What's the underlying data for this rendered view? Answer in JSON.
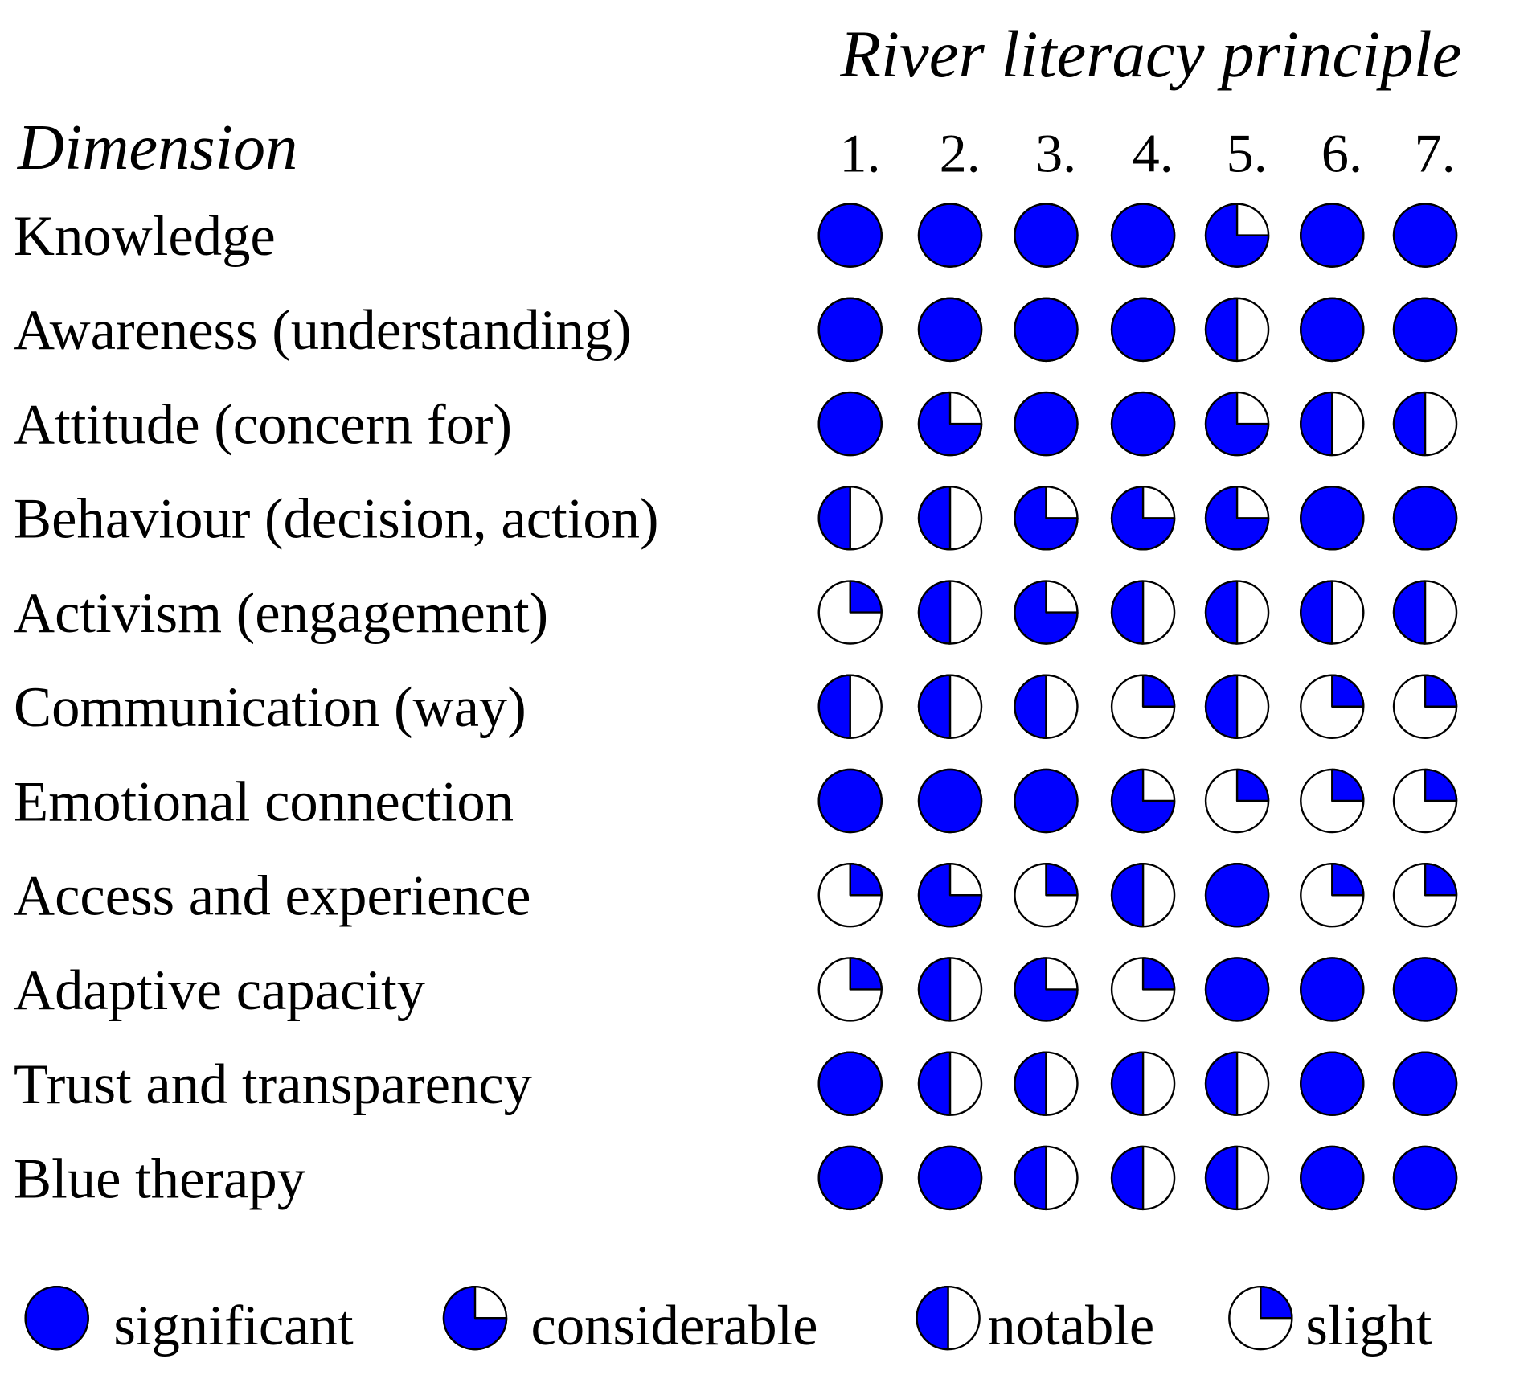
{
  "header": {
    "title": "River literacy principle",
    "dimension_label": "Dimension"
  },
  "columns": [
    "1.",
    "2.",
    "3.",
    "4.",
    "5.",
    "6.",
    "7."
  ],
  "color": "#0000ff",
  "rows": [
    {
      "label": "Knowledge",
      "values": [
        1,
        1,
        1,
        1,
        0.75,
        1,
        1
      ]
    },
    {
      "label": "Awareness (understanding)",
      "values": [
        1,
        1,
        1,
        1,
        0.5,
        1,
        1
      ]
    },
    {
      "label": "Attitude (concern for)",
      "values": [
        1,
        0.75,
        1,
        1,
        0.75,
        0.5,
        0.5
      ]
    },
    {
      "label": "Behaviour (decision, action)",
      "values": [
        0.5,
        0.5,
        0.75,
        0.75,
        0.75,
        1,
        1
      ]
    },
    {
      "label": "Activism (engagement)",
      "values": [
        0.25,
        0.5,
        0.75,
        0.5,
        0.5,
        0.5,
        0.5
      ]
    },
    {
      "label": "Communication (way)",
      "values": [
        0.5,
        0.5,
        0.5,
        0.25,
        0.5,
        0.25,
        0.25
      ]
    },
    {
      "label": "Emotional connection",
      "values": [
        1,
        1,
        1,
        0.75,
        0.25,
        0.25,
        0.25
      ]
    },
    {
      "label": "Access and experience",
      "values": [
        0.25,
        0.75,
        0.25,
        0.5,
        1,
        0.25,
        0.25
      ]
    },
    {
      "label": "Adaptive capacity",
      "values": [
        0.25,
        0.5,
        0.75,
        0.25,
        1,
        1,
        1
      ]
    },
    {
      "label": "Trust and transparency",
      "values": [
        1,
        0.5,
        0.5,
        0.5,
        0.5,
        1,
        1
      ]
    },
    {
      "label": "Blue therapy",
      "values": [
        1,
        1,
        0.5,
        0.5,
        0.5,
        1,
        1
      ]
    }
  ],
  "legend": [
    {
      "label": "significant",
      "value": 1
    },
    {
      "label": "considerable",
      "value": 0.75
    },
    {
      "label": "notable",
      "value": 0.5
    },
    {
      "label": "slight",
      "value": 0.25
    }
  ]
}
